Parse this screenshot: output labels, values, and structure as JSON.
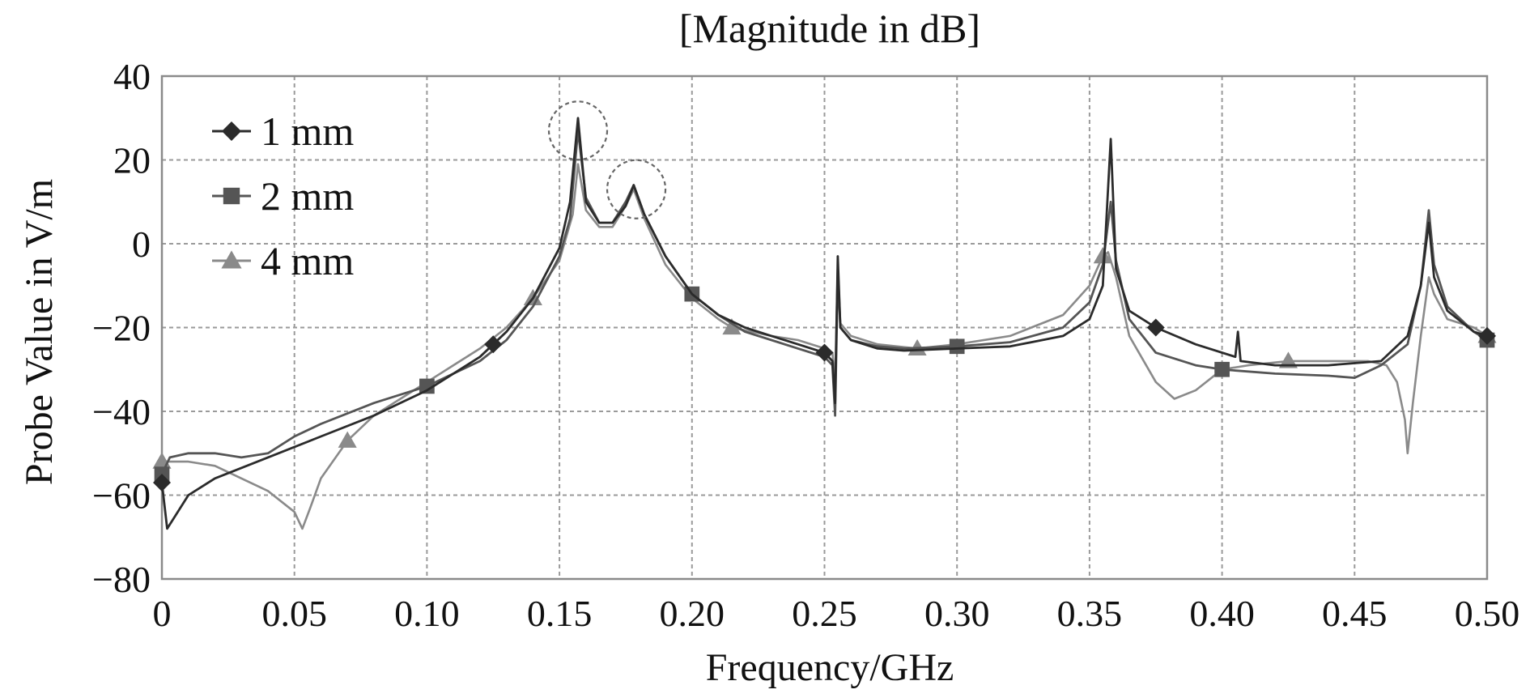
{
  "chart_data": {
    "type": "line",
    "title": "[Magnitude in dB]",
    "xlabel": "Frequency/GHz",
    "ylabel": "Probe Value in V/m",
    "xlim": [
      0,
      0.5
    ],
    "ylim": [
      -80,
      40
    ],
    "grid": true,
    "legend_position": "top-left",
    "x_ticks": [
      "0",
      "0.05",
      "0.10",
      "0.15",
      "0.20",
      "0.25",
      "0.30",
      "0.35",
      "0.40",
      "0.45",
      "0.50"
    ],
    "x_tick_values": [
      0,
      0.05,
      0.1,
      0.15,
      0.2,
      0.25,
      0.3,
      0.35,
      0.4,
      0.45,
      0.5
    ],
    "y_ticks": [
      "40",
      "20",
      "0",
      "−20",
      "−40",
      "−60",
      "−80"
    ],
    "y_tick_values": [
      40,
      20,
      0,
      -20,
      -40,
      -60,
      -80
    ],
    "series": [
      {
        "name": "1 mm",
        "marker": "diamond",
        "color": "#2b2b2b",
        "points": [
          [
            0,
            -57
          ],
          [
            0.002,
            -68
          ],
          [
            0.01,
            -60
          ],
          [
            0.02,
            -56
          ],
          [
            0.04,
            -51
          ],
          [
            0.06,
            -46
          ],
          [
            0.08,
            -41
          ],
          [
            0.1,
            -35
          ],
          [
            0.11,
            -31
          ],
          [
            0.12,
            -27
          ],
          [
            0.125,
            -24
          ],
          [
            0.13,
            -21
          ],
          [
            0.14,
            -13
          ],
          [
            0.15,
            -1
          ],
          [
            0.154,
            10
          ],
          [
            0.157,
            30
          ],
          [
            0.16,
            10
          ],
          [
            0.165,
            5
          ],
          [
            0.17,
            5
          ],
          [
            0.175,
            9
          ],
          [
            0.178,
            14
          ],
          [
            0.182,
            7
          ],
          [
            0.19,
            -3
          ],
          [
            0.2,
            -12
          ],
          [
            0.21,
            -17
          ],
          [
            0.22,
            -20
          ],
          [
            0.23,
            -22
          ],
          [
            0.24,
            -24
          ],
          [
            0.25,
            -26
          ],
          [
            0.253,
            -28
          ],
          [
            0.254,
            -38
          ],
          [
            0.255,
            -3
          ],
          [
            0.256,
            -20
          ],
          [
            0.26,
            -23
          ],
          [
            0.27,
            -25
          ],
          [
            0.28,
            -25.5
          ],
          [
            0.3,
            -25
          ],
          [
            0.32,
            -24.5
          ],
          [
            0.34,
            -22
          ],
          [
            0.35,
            -18
          ],
          [
            0.355,
            -10
          ],
          [
            0.358,
            25
          ],
          [
            0.36,
            -6
          ],
          [
            0.365,
            -16
          ],
          [
            0.375,
            -20
          ],
          [
            0.39,
            -24
          ],
          [
            0.405,
            -27
          ],
          [
            0.406,
            -21
          ],
          [
            0.407,
            -28
          ],
          [
            0.42,
            -29
          ],
          [
            0.44,
            -29
          ],
          [
            0.46,
            -28
          ],
          [
            0.47,
            -22
          ],
          [
            0.475,
            -10
          ],
          [
            0.478,
            5
          ],
          [
            0.48,
            -8
          ],
          [
            0.485,
            -16
          ],
          [
            0.495,
            -21
          ],
          [
            0.5,
            -22
          ]
        ],
        "marker_x": [
          0,
          0.125,
          0.25,
          0.375,
          0.5
        ]
      },
      {
        "name": "2 mm",
        "marker": "square",
        "color": "#555555",
        "points": [
          [
            0,
            -55
          ],
          [
            0.003,
            -51
          ],
          [
            0.01,
            -50
          ],
          [
            0.02,
            -50
          ],
          [
            0.03,
            -51
          ],
          [
            0.04,
            -50
          ],
          [
            0.05,
            -46
          ],
          [
            0.06,
            -43
          ],
          [
            0.08,
            -38
          ],
          [
            0.1,
            -34
          ],
          [
            0.11,
            -31
          ],
          [
            0.12,
            -28
          ],
          [
            0.13,
            -23
          ],
          [
            0.14,
            -15
          ],
          [
            0.15,
            -3
          ],
          [
            0.154,
            6
          ],
          [
            0.157,
            27
          ],
          [
            0.16,
            11
          ],
          [
            0.165,
            5
          ],
          [
            0.17,
            5
          ],
          [
            0.175,
            10
          ],
          [
            0.178,
            14
          ],
          [
            0.182,
            7
          ],
          [
            0.19,
            -3
          ],
          [
            0.2,
            -12
          ],
          [
            0.21,
            -17
          ],
          [
            0.22,
            -21
          ],
          [
            0.23,
            -23
          ],
          [
            0.24,
            -25
          ],
          [
            0.25,
            -27
          ],
          [
            0.253,
            -29
          ],
          [
            0.254,
            -41
          ],
          [
            0.255,
            -7
          ],
          [
            0.256,
            -20
          ],
          [
            0.26,
            -23
          ],
          [
            0.27,
            -24.5
          ],
          [
            0.28,
            -25
          ],
          [
            0.3,
            -24.5
          ],
          [
            0.32,
            -23.5
          ],
          [
            0.34,
            -20
          ],
          [
            0.35,
            -14
          ],
          [
            0.355,
            -5
          ],
          [
            0.358,
            10
          ],
          [
            0.36,
            -4
          ],
          [
            0.365,
            -18
          ],
          [
            0.375,
            -26
          ],
          [
            0.39,
            -29
          ],
          [
            0.4,
            -30
          ],
          [
            0.42,
            -31
          ],
          [
            0.44,
            -31.5
          ],
          [
            0.45,
            -32
          ],
          [
            0.46,
            -29
          ],
          [
            0.47,
            -24
          ],
          [
            0.475,
            -10
          ],
          [
            0.478,
            8
          ],
          [
            0.48,
            -5
          ],
          [
            0.485,
            -15
          ],
          [
            0.495,
            -21
          ],
          [
            0.5,
            -23
          ]
        ],
        "marker_x": [
          0,
          0.1,
          0.2,
          0.3,
          0.4,
          0.5
        ]
      },
      {
        "name": "4 mm",
        "marker": "triangle",
        "color": "#8a8a8a",
        "points": [
          [
            0,
            -52
          ],
          [
            0.01,
            -52
          ],
          [
            0.02,
            -53
          ],
          [
            0.03,
            -56
          ],
          [
            0.04,
            -59
          ],
          [
            0.05,
            -64
          ],
          [
            0.053,
            -68
          ],
          [
            0.056,
            -63
          ],
          [
            0.06,
            -56
          ],
          [
            0.07,
            -47
          ],
          [
            0.08,
            -41
          ],
          [
            0.09,
            -37
          ],
          [
            0.1,
            -33
          ],
          [
            0.11,
            -29
          ],
          [
            0.12,
            -25
          ],
          [
            0.13,
            -20
          ],
          [
            0.14,
            -13
          ],
          [
            0.15,
            -4
          ],
          [
            0.155,
            7
          ],
          [
            0.157,
            19
          ],
          [
            0.16,
            8
          ],
          [
            0.165,
            4
          ],
          [
            0.17,
            4
          ],
          [
            0.175,
            9
          ],
          [
            0.178,
            13
          ],
          [
            0.182,
            6
          ],
          [
            0.19,
            -5
          ],
          [
            0.2,
            -13
          ],
          [
            0.21,
            -18
          ],
          [
            0.215,
            -20
          ],
          [
            0.23,
            -22
          ],
          [
            0.24,
            -23
          ],
          [
            0.25,
            -25
          ],
          [
            0.253,
            -26
          ],
          [
            0.254,
            -33
          ],
          [
            0.255,
            -5
          ],
          [
            0.256,
            -19
          ],
          [
            0.26,
            -22
          ],
          [
            0.27,
            -24
          ],
          [
            0.285,
            -25
          ],
          [
            0.3,
            -24
          ],
          [
            0.32,
            -22
          ],
          [
            0.34,
            -17
          ],
          [
            0.35,
            -10
          ],
          [
            0.355,
            -3
          ],
          [
            0.357,
            -2
          ],
          [
            0.36,
            -8
          ],
          [
            0.365,
            -22
          ],
          [
            0.375,
            -33
          ],
          [
            0.382,
            -37
          ],
          [
            0.39,
            -35
          ],
          [
            0.4,
            -30
          ],
          [
            0.41,
            -29
          ],
          [
            0.425,
            -28
          ],
          [
            0.44,
            -28
          ],
          [
            0.455,
            -28
          ],
          [
            0.462,
            -29
          ],
          [
            0.466,
            -33
          ],
          [
            0.469,
            -42
          ],
          [
            0.47,
            -50
          ],
          [
            0.472,
            -38
          ],
          [
            0.475,
            -22
          ],
          [
            0.478,
            -8
          ],
          [
            0.48,
            -12
          ],
          [
            0.485,
            -18
          ],
          [
            0.495,
            -20
          ],
          [
            0.5,
            -22
          ]
        ],
        "marker_x": [
          0,
          0.07,
          0.14,
          0.215,
          0.285,
          0.355,
          0.425,
          0.5
        ]
      }
    ],
    "annotations": [
      {
        "type": "circle",
        "x": 0.157,
        "y": 27,
        "note": "peak highlight"
      },
      {
        "type": "circle",
        "x": 0.179,
        "y": 13,
        "note": "peak highlight"
      }
    ]
  }
}
